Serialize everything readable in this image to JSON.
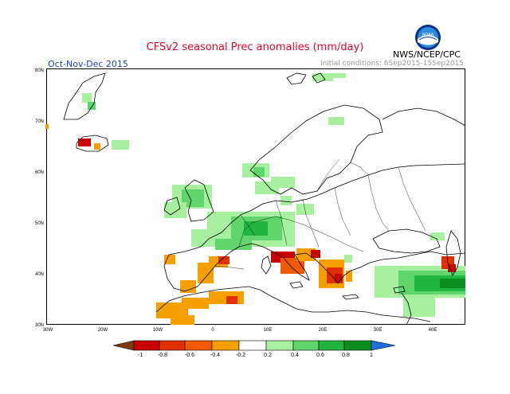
{
  "header": {
    "title": "CFSv2 seasonal Prec anomalies (mm/day)",
    "period": "Oct-Nov-Dec 2015",
    "initial_conditions": "Initial conditions: 6Sep2015-15Sep2015",
    "agency": "NWS/NCEP/CPC",
    "logo_text": "NOAA"
  },
  "map": {
    "lat_labels": [
      "80N",
      "70N",
      "60N",
      "50N",
      "40N",
      "30N"
    ],
    "lon_labels": [
      "30W",
      "20W",
      "10W",
      "0",
      "10E",
      "20E",
      "30E",
      "40E"
    ]
  },
  "colorbar": {
    "labels": [
      "-1",
      "-0.8",
      "-0.6",
      "-0.4",
      "-0.2",
      "0.2",
      "0.4",
      "0.6",
      "0.8",
      "1"
    ],
    "colors": [
      "#7a3a10",
      "#c80000",
      "#e03000",
      "#f05a00",
      "#f5a000",
      "#ffffff",
      "#a6f0a0",
      "#5fd56b",
      "#22b440",
      "#0a8c1e",
      "#1f6fe0"
    ]
  },
  "colors": {
    "title": "#e8002a",
    "period": "#1f3fbf",
    "init": "#9a9a9a"
  }
}
